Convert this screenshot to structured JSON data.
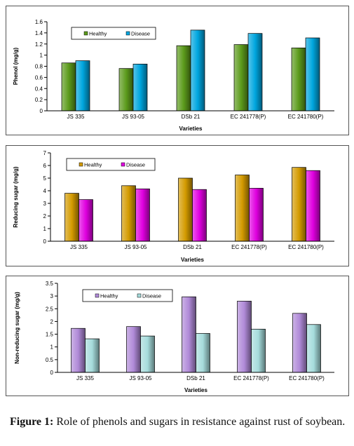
{
  "chart_data": [
    {
      "type": "bar",
      "categories": [
        "JS 335",
        "JS 93-05",
        "DSb 21",
        "EC 241778(P)",
        "EC 241780(P)"
      ],
      "series": [
        {
          "name": "Healthy",
          "values": [
            0.86,
            0.76,
            1.17,
            1.19,
            1.13
          ]
        },
        {
          "name": "Disease",
          "values": [
            0.9,
            0.84,
            1.45,
            1.39,
            1.31
          ]
        }
      ],
      "title": "",
      "xlabel": "Varieties",
      "ylabel": "Phenol (mg/g)",
      "ylim": [
        0,
        1.6
      ],
      "yticks": [
        "0",
        "0.2",
        "0.4",
        "0.6",
        "0.8",
        "1",
        "1.2",
        "1.4",
        "1.6"
      ],
      "colors": {
        "Healthy": "#5c9b1c",
        "Disease": "#00a6df"
      },
      "legend": "top-left",
      "grid": false
    },
    {
      "type": "bar",
      "categories": [
        "JS 335",
        "JS 93-05",
        "DSb 21",
        "EC 241778(P)",
        "EC 241780(P)"
      ],
      "series": [
        {
          "name": "Healthy",
          "values": [
            3.8,
            4.4,
            5.0,
            5.25,
            5.85
          ]
        },
        {
          "name": "Disease",
          "values": [
            3.3,
            4.15,
            4.1,
            4.2,
            5.6
          ]
        }
      ],
      "title": "",
      "xlabel": "Varieties",
      "ylabel": "Reducing sugar (mg/g)",
      "ylim": [
        0,
        7
      ],
      "yticks": [
        "0",
        "1",
        "2",
        "3",
        "4",
        "5",
        "6",
        "7"
      ],
      "colors": {
        "Healthy": "#d49b00",
        "Disease": "#e000e0"
      },
      "legend": "top-left",
      "grid": false
    },
    {
      "type": "bar",
      "categories": [
        "JS 335",
        "JS 93-05",
        "DSb 21",
        "EC 241778(P)",
        "EC 241780(P)"
      ],
      "series": [
        {
          "name": "Healthy",
          "values": [
            1.73,
            1.8,
            2.97,
            2.8,
            2.32
          ]
        },
        {
          "name": "Disease",
          "values": [
            1.32,
            1.43,
            1.53,
            1.7,
            1.88
          ]
        }
      ],
      "title": "",
      "xlabel": "Varieties",
      "ylabel": "Non-reducing sugar (mg/g)",
      "ylim": [
        0,
        3.5
      ],
      "yticks": [
        "0",
        "0.5",
        "1",
        "1.5",
        "2",
        "2.5",
        "3",
        "3.5"
      ],
      "colors": {
        "Healthy": "#b08ad8",
        "Disease": "#a6dcdc"
      },
      "legend": "top-left",
      "grid": false
    }
  ],
  "caption": {
    "label": "Figure 1:",
    "text": "Role of phenols and sugars in resistance against rust of soybean."
  }
}
